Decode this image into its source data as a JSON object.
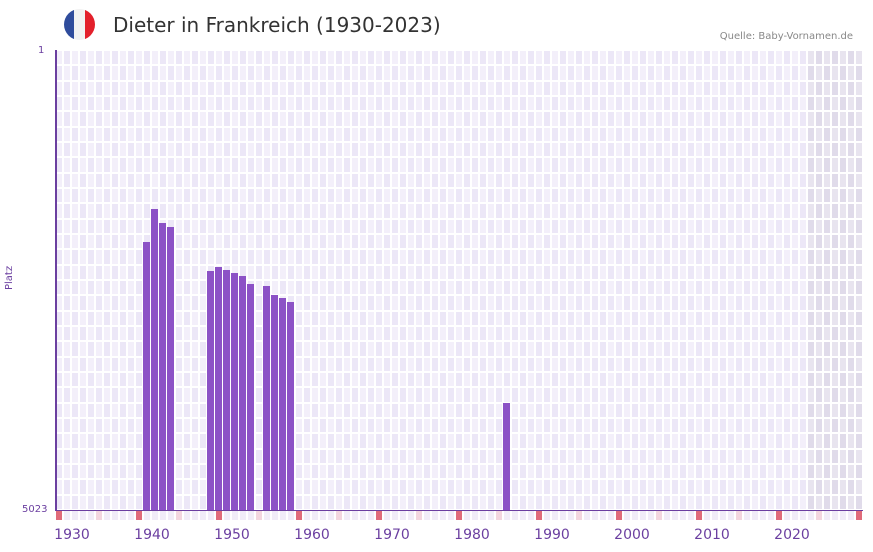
{
  "header": {
    "title": "Dieter in Frankreich (1930-2023)",
    "source": "Quelle: Baby-Vornamen.de",
    "flag_colors": [
      "#2f4c9c",
      "#f2f2f2",
      "#e3202b"
    ]
  },
  "colors": {
    "bar": "#8c52c6",
    "axis": "#6b3fa0",
    "grid_a": "#f3effa",
    "grid_b": "#ece7f7",
    "shade_a": "#e8e4ef",
    "shade_b": "#e0dbea",
    "decade_marker": "#e06b7a",
    "half_marker": "#f3d6df"
  },
  "chart_data": {
    "type": "bar",
    "title": "Dieter in Frankreich (1930-2023)",
    "xlabel": "",
    "ylabel": "Platz",
    "y_inverted": true,
    "ylim": [
      5023,
      1
    ],
    "y_ticks": [
      "1",
      "5023"
    ],
    "x_ticks": [
      "1930",
      "1940",
      "1950",
      "1960",
      "1970",
      "1980",
      "1990",
      "2000",
      "2010",
      "2020"
    ],
    "x_range": [
      1929,
      2029
    ],
    "shaded_from": 2023,
    "categories": [
      "1940",
      "1941",
      "1942",
      "1943",
      "1948",
      "1949",
      "1950",
      "1951",
      "1952",
      "1953",
      "1955",
      "1956",
      "1957",
      "1958",
      "1985"
    ],
    "values": [
      2097,
      1737,
      1890,
      1933,
      2414,
      2370,
      2403,
      2436,
      2468,
      2556,
      2578,
      2676,
      2709,
      2752,
      3855
    ],
    "source": "Quelle: Baby-Vornamen.de"
  }
}
